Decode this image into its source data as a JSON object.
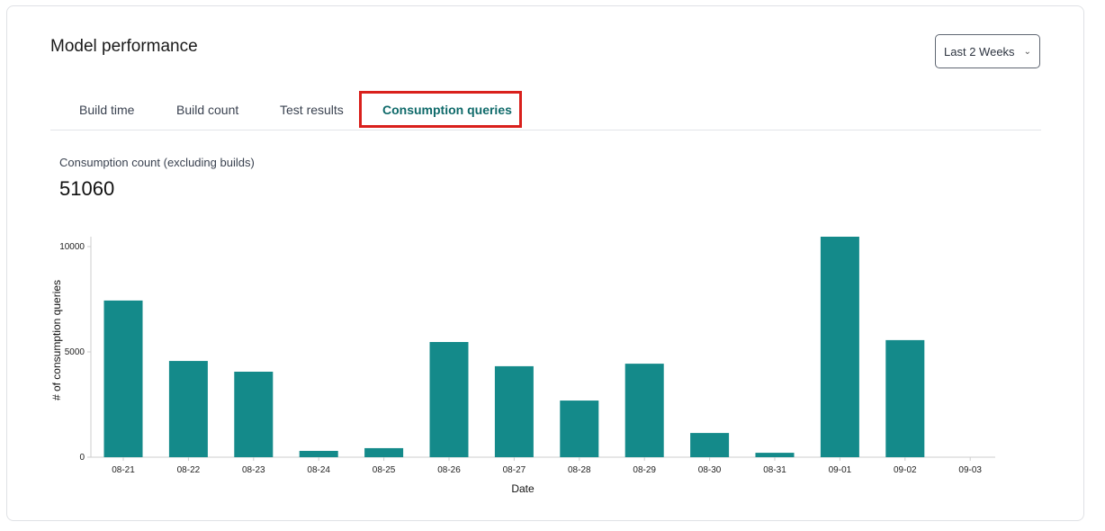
{
  "title": "Model performance",
  "range_dropdown": {
    "value": "Last 2 Weeks"
  },
  "tabs": [
    {
      "label": "Build time"
    },
    {
      "label": "Build count"
    },
    {
      "label": "Test results"
    },
    {
      "label": "Consumption queries",
      "active": true
    }
  ],
  "metric": {
    "label": "Consumption count (excluding builds)",
    "value": "51060"
  },
  "colors": {
    "bar": "#148a8a",
    "active_tab": "#0f6a6a",
    "highlight": "#d9201c"
  },
  "chart_data": {
    "type": "bar",
    "xlabel": "Date",
    "ylabel": "# of consumption queries",
    "categories": [
      "08-21",
      "08-22",
      "08-23",
      "08-24",
      "08-25",
      "08-26",
      "08-27",
      "08-28",
      "08-29",
      "08-30",
      "08-31",
      "09-01",
      "09-02",
      "09-03"
    ],
    "values": [
      7440,
      4570,
      4060,
      300,
      430,
      5470,
      4320,
      2690,
      4440,
      1150,
      210,
      10470,
      5560,
      0
    ],
    "yticks": [
      0,
      5000,
      10000
    ],
    "ytick_labels": [
      "0",
      "5000",
      "10000"
    ],
    "ylim": [
      0,
      10470
    ],
    "grid": false
  }
}
